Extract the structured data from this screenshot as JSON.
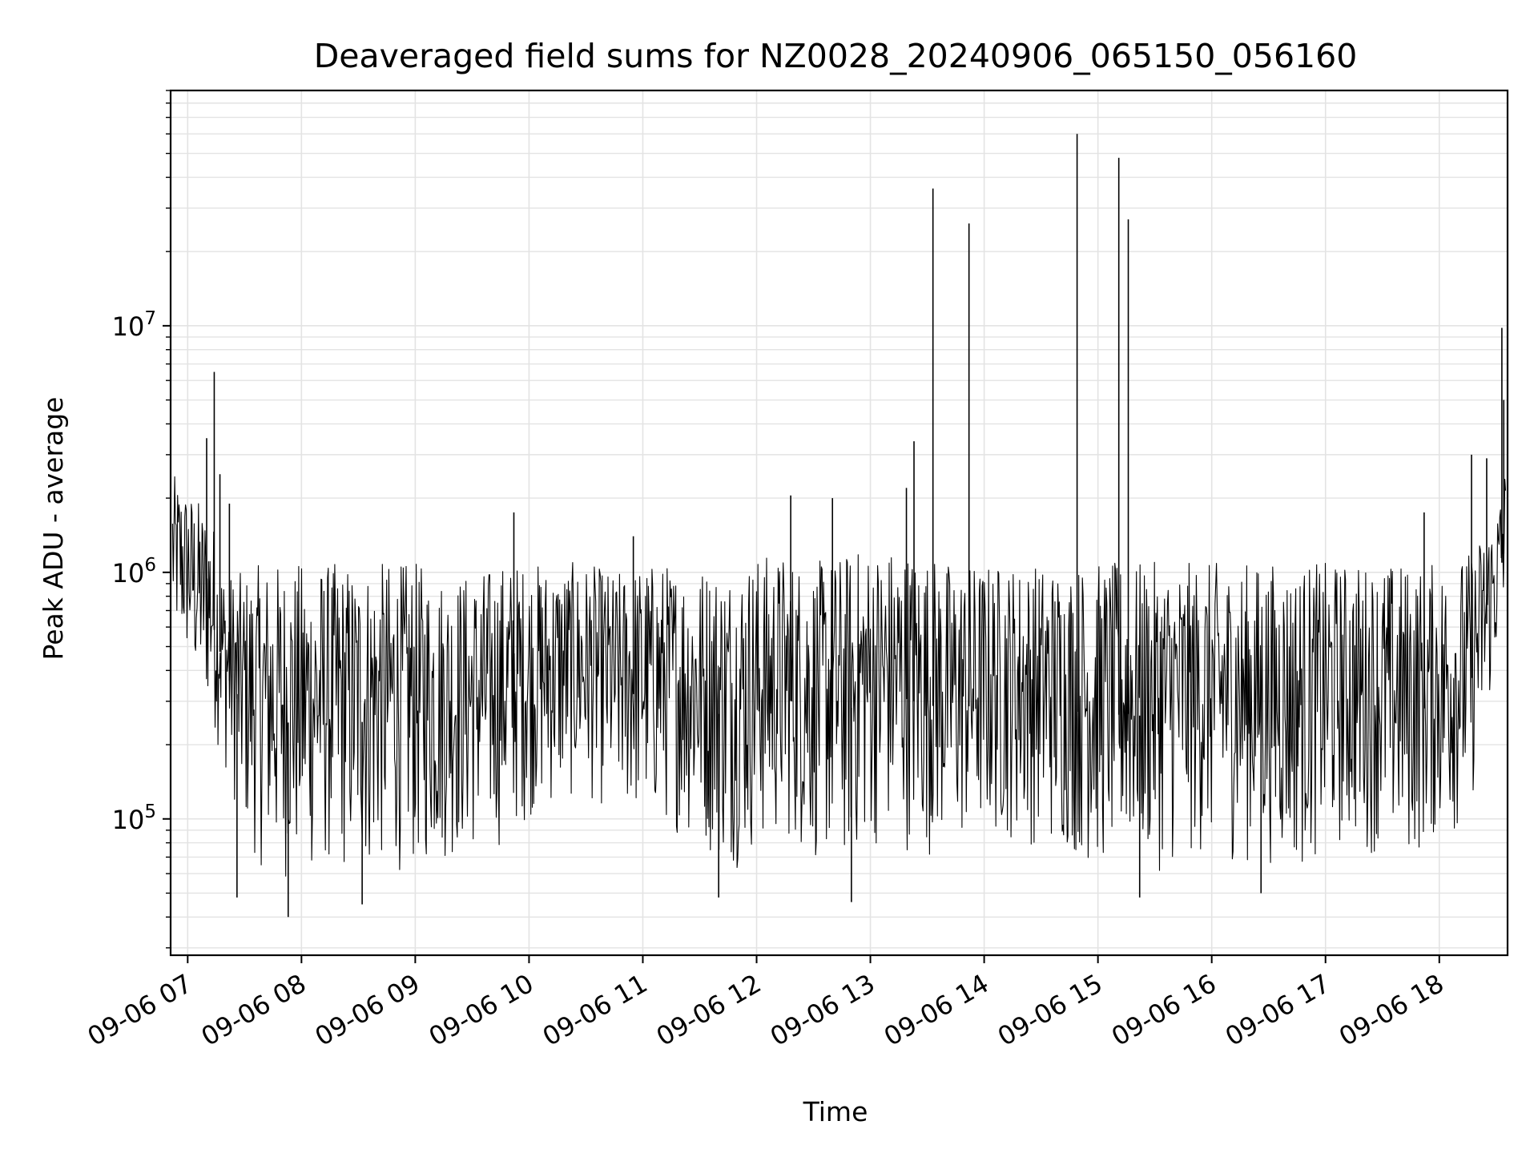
{
  "chart_data": {
    "type": "line",
    "title": "Deaveraged field sums for NZ0028_20240906_065150_056160",
    "xlabel": "Time",
    "ylabel": "Peak ADU - average",
    "y_scale": "log",
    "grid": true,
    "line_color": "#000000",
    "x_range": [
      "2024-09-06 06:51",
      "2024-09-06 18:36"
    ],
    "ylim": [
      28000,
      90000000
    ],
    "x_ticks": [
      {
        "time": "2024-09-06 07:00",
        "label": "09-06 07"
      },
      {
        "time": "2024-09-06 08:00",
        "label": "09-06 08"
      },
      {
        "time": "2024-09-06 09:00",
        "label": "09-06 09"
      },
      {
        "time": "2024-09-06 10:00",
        "label": "09-06 10"
      },
      {
        "time": "2024-09-06 11:00",
        "label": "09-06 11"
      },
      {
        "time": "2024-09-06 12:00",
        "label": "09-06 12"
      },
      {
        "time": "2024-09-06 13:00",
        "label": "09-06 13"
      },
      {
        "time": "2024-09-06 14:00",
        "label": "09-06 14"
      },
      {
        "time": "2024-09-06 15:00",
        "label": "09-06 15"
      },
      {
        "time": "2024-09-06 16:00",
        "label": "09-06 16"
      },
      {
        "time": "2024-09-06 17:00",
        "label": "09-06 17"
      },
      {
        "time": "2024-09-06 18:00",
        "label": "09-06 18"
      }
    ],
    "y_ticks": [
      {
        "value": 100000,
        "base": "10",
        "exp": "5"
      },
      {
        "value": 1000000,
        "base": "10",
        "exp": "6"
      },
      {
        "value": 10000000,
        "base": "10",
        "exp": "7"
      }
    ],
    "series": [
      {
        "x": [
          "2024-09-06 06:52",
          "2024-09-06 07:00",
          "2024-09-06 07:05",
          "2024-09-06 07:12",
          "2024-09-06 07:20",
          "2024-09-06 07:30",
          "2024-09-06 07:40",
          "2024-09-06 07:50",
          "2024-09-06 08:00",
          "2024-09-06 08:15",
          "2024-09-06 08:30",
          "2024-09-06 08:45",
          "2024-09-06 09:00",
          "2024-09-06 09:15",
          "2024-09-06 09:30",
          "2024-09-06 09:45",
          "2024-09-06 10:00",
          "2024-09-06 10:15",
          "2024-09-06 10:30",
          "2024-09-06 10:45",
          "2024-09-06 11:00",
          "2024-09-06 11:15",
          "2024-09-06 11:30",
          "2024-09-06 11:45",
          "2024-09-06 12:00",
          "2024-09-06 12:15",
          "2024-09-06 12:30",
          "2024-09-06 12:45",
          "2024-09-06 13:00",
          "2024-09-06 13:15",
          "2024-09-06 13:30",
          "2024-09-06 13:45",
          "2024-09-06 14:00",
          "2024-09-06 14:15",
          "2024-09-06 14:30",
          "2024-09-06 14:45",
          "2024-09-06 15:00",
          "2024-09-06 15:15",
          "2024-09-06 15:30",
          "2024-09-06 15:45",
          "2024-09-06 16:00",
          "2024-09-06 16:15",
          "2024-09-06 16:30",
          "2024-09-06 16:45",
          "2024-09-06 17:00",
          "2024-09-06 17:15",
          "2024-09-06 17:30",
          "2024-09-06 17:45",
          "2024-09-06 18:00",
          "2024-09-06 18:15",
          "2024-09-06 18:30",
          "2024-09-06 18:35"
        ],
        "lower": [
          500000,
          400000,
          300000,
          250000,
          150000,
          80000,
          60000,
          55000,
          55000,
          60000,
          55000,
          60000,
          60000,
          65000,
          70000,
          75000,
          100000,
          110000,
          120000,
          100000,
          95000,
          90000,
          75000,
          60000,
          70000,
          80000,
          65000,
          60000,
          75000,
          75000,
          70000,
          70000,
          80000,
          80000,
          75000,
          70000,
          60000,
          65000,
          60000,
          65000,
          70000,
          65000,
          65000,
          60000,
          70000,
          75000,
          70000,
          65000,
          80000,
          90000,
          400000,
          600000
        ],
        "upper": [
          2500000,
          2200000,
          2000000,
          1800000,
          1000000,
          1000000,
          1100000,
          1100000,
          1100000,
          1100000,
          1100000,
          1100000,
          1100000,
          1000000,
          1000000,
          1100000,
          1100000,
          1100000,
          1100000,
          1000000,
          1100000,
          1100000,
          1100000,
          1100000,
          1200000,
          1200000,
          1100000,
          1200000,
          1300000,
          1300000,
          1200000,
          1100000,
          1100000,
          1100000,
          1100000,
          1100000,
          1100000,
          1100000,
          1100000,
          1100000,
          1100000,
          1100000,
          1100000,
          1100000,
          1100000,
          1100000,
          1100000,
          1100000,
          1100000,
          1200000,
          1800000,
          2800000
        ]
      }
    ],
    "spikes": [
      {
        "time": "2024-09-06 07:14",
        "value": 6500000
      },
      {
        "time": "2024-09-06 07:10",
        "value": 3500000
      },
      {
        "time": "2024-09-06 07:17",
        "value": 2500000
      },
      {
        "time": "2024-09-06 07:22",
        "value": 1900000
      },
      {
        "time": "2024-09-06 07:26",
        "value": 48000
      },
      {
        "time": "2024-09-06 07:53",
        "value": 40000
      },
      {
        "time": "2024-09-06 08:32",
        "value": 45000
      },
      {
        "time": "2024-09-06 09:52",
        "value": 1750000
      },
      {
        "time": "2024-09-06 10:55",
        "value": 1400000
      },
      {
        "time": "2024-09-06 11:40",
        "value": 48000
      },
      {
        "time": "2024-09-06 12:18",
        "value": 2050000
      },
      {
        "time": "2024-09-06 12:40",
        "value": 2000000
      },
      {
        "time": "2024-09-06 12:50",
        "value": 46000
      },
      {
        "time": "2024-09-06 13:19",
        "value": 2200000
      },
      {
        "time": "2024-09-06 13:23",
        "value": 3400000
      },
      {
        "time": "2024-09-06 13:33",
        "value": 36000000
      },
      {
        "time": "2024-09-06 13:52",
        "value": 26000000
      },
      {
        "time": "2024-09-06 14:49",
        "value": 60000000
      },
      {
        "time": "2024-09-06 15:11",
        "value": 48000000
      },
      {
        "time": "2024-09-06 15:16",
        "value": 27000000
      },
      {
        "time": "2024-09-06 15:22",
        "value": 48000
      },
      {
        "time": "2024-09-06 16:26",
        "value": 50000
      },
      {
        "time": "2024-09-06 17:52",
        "value": 1750000
      },
      {
        "time": "2024-09-06 18:17",
        "value": 3000000
      },
      {
        "time": "2024-09-06 18:25",
        "value": 2900000
      },
      {
        "time": "2024-09-06 18:33",
        "value": 9800000
      },
      {
        "time": "2024-09-06 18:34",
        "value": 5000000
      }
    ]
  }
}
